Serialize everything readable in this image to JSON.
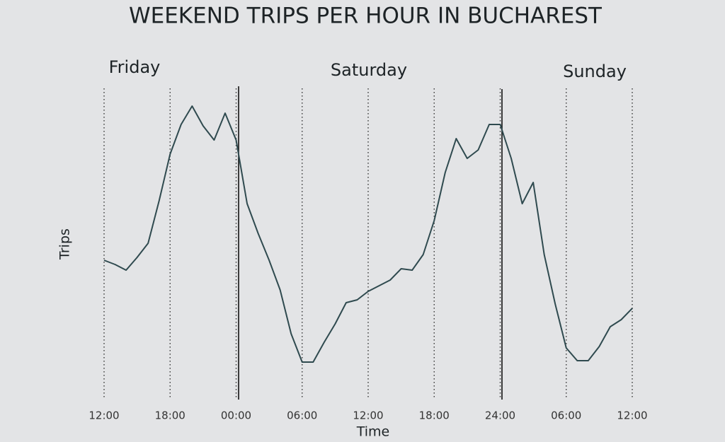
{
  "chart_data": {
    "type": "line",
    "title": "WEEKEND TRIPS PER HOUR IN BUCHAREST",
    "x_label": "Time",
    "y_label": "Trips",
    "day_labels": [
      "Friday",
      "Saturday",
      "Sunday"
    ],
    "categories": [
      "12:00",
      null,
      null,
      null,
      null,
      null,
      "18:00",
      null,
      null,
      null,
      null,
      null,
      "00:00",
      null,
      null,
      null,
      null,
      null,
      "06:00",
      null,
      null,
      null,
      null,
      null,
      "12:00",
      null,
      null,
      null,
      null,
      null,
      "18:00",
      null,
      null,
      null,
      null,
      null,
      "24:00",
      null,
      null,
      null,
      null,
      null,
      "06:00",
      null,
      null,
      null,
      null,
      null,
      "12:00"
    ],
    "values": [
      48,
      46.5,
      44.5,
      49,
      54,
      69,
      85.5,
      96,
      102.5,
      95.5,
      90.5,
      100,
      90.5,
      68,
      57.5,
      48,
      37.5,
      22,
      12,
      12,
      19,
      25.5,
      33,
      34,
      37,
      39,
      41,
      45,
      44.5,
      50,
      62,
      79,
      91,
      84,
      87,
      96,
      96,
      84,
      68,
      75.5,
      50,
      32.5,
      17,
      12.5,
      12.5,
      17.5,
      24.5,
      27,
      31
    ],
    "color": "#2f4a4f"
  }
}
